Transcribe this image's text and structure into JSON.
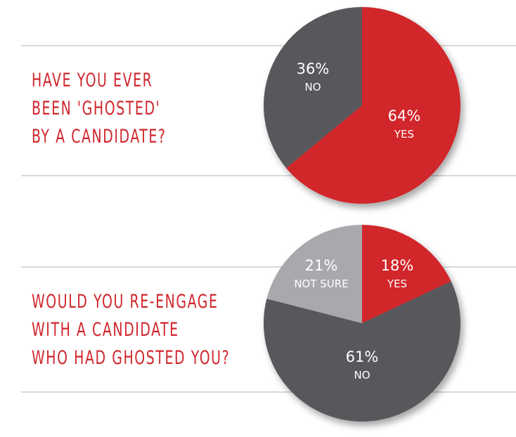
{
  "questions": [
    {
      "lines": [
        "HAVE YOU EVER",
        "BEEN 'GHOSTED'",
        "BY A CANDIDATE?"
      ]
    },
    {
      "lines": [
        "WOULD YOU RE-ENGAGE",
        "WITH A CANDIDATE",
        "WHO HAD GHOSTED YOU?"
      ]
    }
  ],
  "chart_data": [
    {
      "type": "pie",
      "title": "HAVE YOU EVER BEEN 'GHOSTED' BY A CANDIDATE?",
      "slices": [
        {
          "label": "YES",
          "value": 64,
          "display": "64%",
          "color": "#d1262c"
        },
        {
          "label": "NO",
          "value": 36,
          "display": "36%",
          "color": "#58595b"
        }
      ]
    },
    {
      "type": "pie",
      "title": "WOULD YOU RE-ENGAGE WITH A CANDIDATE WHO HAD GHOSTED YOU?",
      "slices": [
        {
          "label": "YES",
          "value": 18,
          "display": "18%",
          "color": "#d1262c"
        },
        {
          "label": "NO",
          "value": 61,
          "display": "61%",
          "color": "#58595b"
        },
        {
          "label": "NOT SURE",
          "value": 21,
          "display": "21%",
          "color": "#a7a9ac"
        }
      ]
    }
  ]
}
